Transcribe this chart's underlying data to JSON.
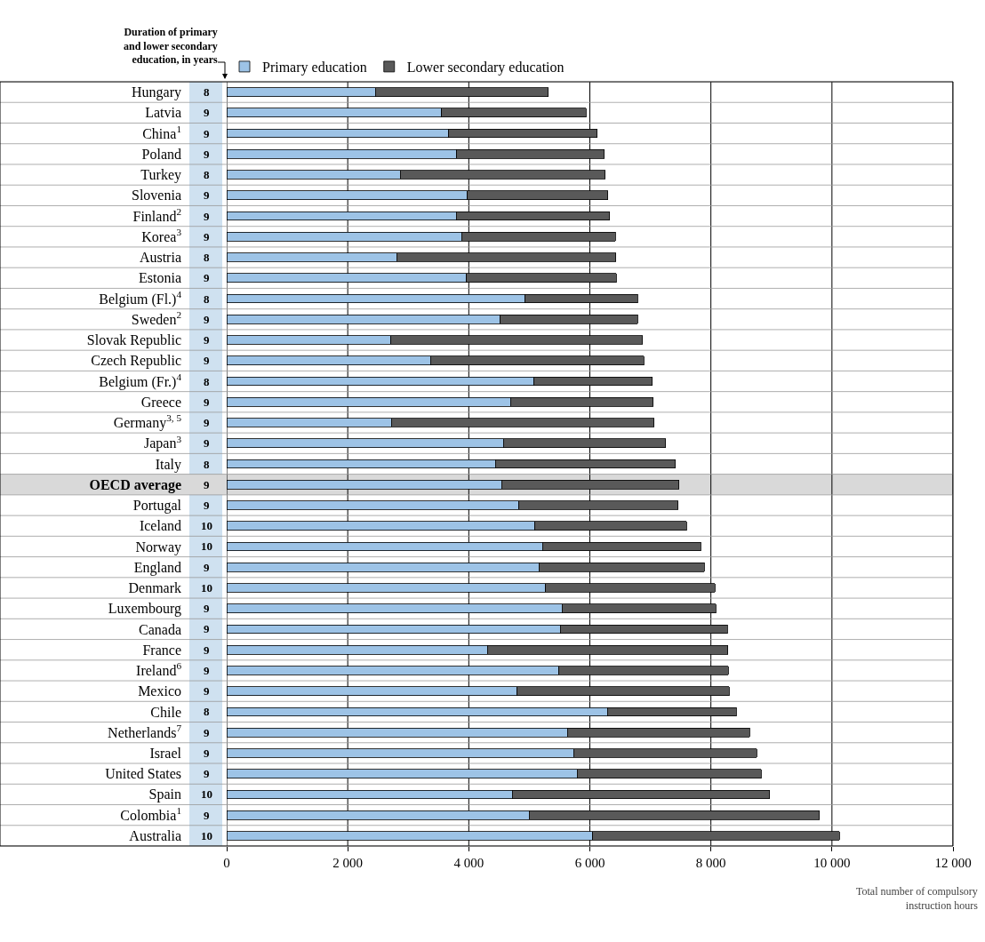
{
  "chart_data": {
    "type": "bar",
    "orientation": "horizontal",
    "stacked": true,
    "categories": [
      "Hungary",
      "Latvia",
      "China$^{1}$",
      "Poland",
      "Turkey",
      "Slovenia",
      "Finland$^{2}$",
      "Korea$^{3}$",
      "Austria",
      "Estonia",
      "Belgium (Fl.)$^{4}$",
      "Sweden$^{2}$",
      "Slovak Republic",
      "Czech Republic",
      "Belgium (Fr.)$^{4}$",
      "Greece",
      "Germany$^{3, 5}$",
      "Japan$^{3}$",
      "Italy",
      "OECD average",
      "Portugal",
      "Iceland",
      "Norway",
      "England",
      "Denmark",
      "Luxembourg",
      "Canada",
      "France",
      "Ireland$^{6}$",
      "Mexico",
      "Chile",
      "Netherlands$^{7}$",
      "Israel",
      "United States",
      "Spain",
      "Colombia$^{1}$",
      "Australia"
    ],
    "series": [
      {
        "name": "Primary education",
        "color": "#9dc3e6",
        "values": [
          2460,
          3550,
          3670,
          3800,
          2870,
          3980,
          3790,
          3880,
          2810,
          3960,
          4930,
          4520,
          2710,
          3370,
          5080,
          4690,
          2720,
          4570,
          4440,
          4540,
          4830,
          5090,
          5220,
          5160,
          5270,
          5540,
          5510,
          4310,
          5490,
          4800,
          6290,
          5630,
          5730,
          5790,
          4720,
          5000,
          6050
        ]
      },
      {
        "name": "Lower secondary education",
        "color": "#595959",
        "values": [
          2850,
          2390,
          2450,
          2440,
          3380,
          2320,
          2540,
          2540,
          3620,
          2480,
          1860,
          2270,
          4160,
          3520,
          1950,
          2360,
          4340,
          2680,
          2970,
          2930,
          2630,
          2510,
          2610,
          2730,
          2800,
          2540,
          2760,
          3970,
          2800,
          3500,
          2130,
          3010,
          3030,
          3040,
          4250,
          4790,
          4070
        ]
      }
    ],
    "xlim": [
      0,
      12000
    ],
    "xticks": [
      0,
      {
        "value": 2000,
        "label": "2 000"
      },
      {
        "value": 4000,
        "label": "4 000"
      },
      {
        "value": 6000,
        "label": "6 000"
      },
      {
        "value": 8000,
        "label": "8 000"
      },
      {
        "value": 10000,
        "label": "10 000"
      },
      {
        "value": 12000,
        "label": "12 000"
      }
    ],
    "xlabel": "Total number of compulsory instruction hours",
    "grid": "x",
    "legend": "top left",
    "bands": [
      {
        "axis": "y",
        "from": "OECD average",
        "to": "OECD average",
        "color": "#d9d9d9"
      }
    ],
    "annotations": [
      "Duration of primary and lower secondary education, in years",
      "8",
      "9",
      "9",
      "9",
      "8",
      "9",
      "9",
      "9",
      "8",
      "9",
      "8",
      "9",
      "9",
      "9",
      "8",
      "9",
      "9",
      "9",
      "8",
      "9",
      "9",
      "10",
      "10",
      "9",
      "10",
      "9",
      "9",
      "9",
      "9",
      "9",
      "8",
      "9",
      "9",
      "9",
      "10",
      "9",
      "10"
    ]
  }
}
